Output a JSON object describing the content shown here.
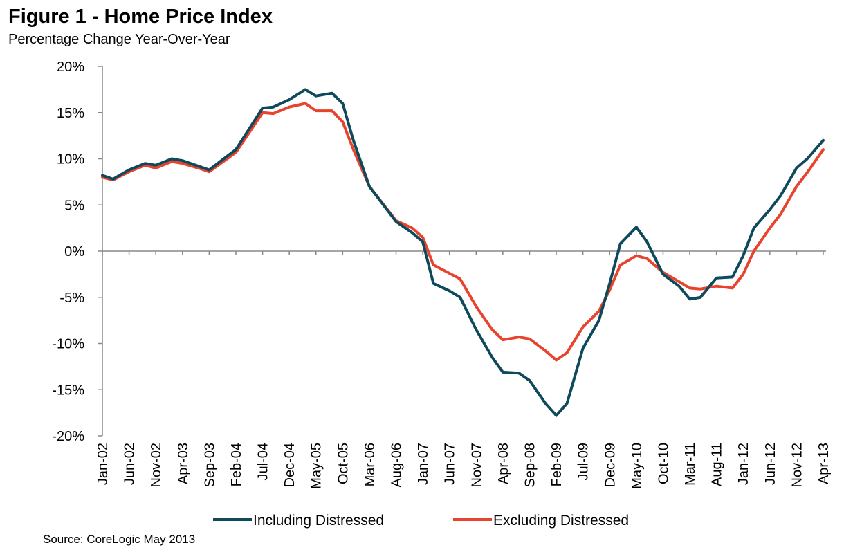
{
  "chart_data": {
    "type": "line",
    "title": "Figure 1 - Home Price Index",
    "subtitle": "Percentage Change Year-Over-Year",
    "xlabel": "",
    "ylabel": "",
    "ylim": [
      -20,
      20
    ],
    "yticks": [
      20,
      15,
      10,
      5,
      0,
      -5,
      -10,
      -15,
      -20
    ],
    "ytick_labels": [
      "20%",
      "15%",
      "10%",
      "5%",
      "0%",
      "-5%",
      "-10%",
      "-15%",
      "-20%"
    ],
    "x_month_range": [
      0,
      135
    ],
    "x_tick_months": [
      0,
      5,
      10,
      15,
      20,
      25,
      30,
      35,
      40,
      45,
      50,
      55,
      60,
      65,
      70,
      75,
      80,
      85,
      90,
      95,
      100,
      105,
      110,
      115,
      120,
      125,
      130,
      135
    ],
    "x_tick_labels": [
      "Jan-02",
      "Jun-02",
      "Nov-02",
      "Apr-03",
      "Sep-03",
      "Feb-04",
      "Jul-04",
      "Dec-04",
      "May-05",
      "Oct-05",
      "Mar-06",
      "Aug-06",
      "Jan-07",
      "Jun-07",
      "Nov-07",
      "Apr-08",
      "Sep-08",
      "Feb-09",
      "Jul-09",
      "Dec-09",
      "May-10",
      "Oct-10",
      "Mar-11",
      "Aug-11",
      "Jan-12",
      "Jun-12",
      "Nov-12",
      "Apr-13"
    ],
    "grid": false,
    "legend": "bottom",
    "series": [
      {
        "name": "Including Distressed",
        "color": "#0f4a5c",
        "months": [
          0,
          2,
          5,
          8,
          10,
          13,
          15,
          18,
          20,
          25,
          30,
          32,
          35,
          38,
          40,
          43,
          45,
          47,
          50,
          55,
          58,
          60,
          62,
          65,
          67,
          70,
          73,
          75,
          78,
          80,
          83,
          85,
          87,
          90,
          93,
          95,
          97,
          100,
          102,
          105,
          108,
          110,
          112,
          115,
          118,
          120,
          122,
          125,
          127,
          130,
          132,
          135
        ],
        "values": [
          8.2,
          7.8,
          8.8,
          9.5,
          9.3,
          10.0,
          9.8,
          9.2,
          8.8,
          11.0,
          15.5,
          15.6,
          16.4,
          17.5,
          16.8,
          17.1,
          16.0,
          12.0,
          7.0,
          3.2,
          2.0,
          1.0,
          -3.5,
          -4.3,
          -5.0,
          -8.5,
          -11.5,
          -13.1,
          -13.2,
          -14.0,
          -16.5,
          -17.8,
          -16.5,
          -10.5,
          -7.5,
          -3.5,
          0.8,
          2.6,
          1.0,
          -2.5,
          -3.8,
          -5.2,
          -5.0,
          -2.9,
          -2.8,
          -0.5,
          2.5,
          4.5,
          6.0,
          9.0,
          10.0,
          12.0
        ]
      },
      {
        "name": "Excluding Distressed",
        "color": "#e8432c",
        "months": [
          0,
          2,
          5,
          8,
          10,
          13,
          15,
          18,
          20,
          25,
          30,
          32,
          35,
          38,
          40,
          43,
          45,
          47,
          50,
          55,
          58,
          60,
          62,
          65,
          67,
          70,
          73,
          75,
          78,
          80,
          83,
          85,
          87,
          90,
          93,
          95,
          97,
          100,
          102,
          105,
          108,
          110,
          112,
          115,
          118,
          120,
          122,
          125,
          127,
          130,
          132,
          135
        ],
        "values": [
          8.0,
          7.7,
          8.6,
          9.3,
          9.0,
          9.7,
          9.5,
          9.0,
          8.6,
          10.7,
          15.0,
          14.9,
          15.6,
          16.0,
          15.2,
          15.2,
          14.0,
          11.0,
          7.0,
          3.3,
          2.5,
          1.5,
          -1.5,
          -2.4,
          -3.0,
          -6.0,
          -8.5,
          -9.6,
          -9.3,
          -9.5,
          -10.8,
          -11.8,
          -11.0,
          -8.2,
          -6.5,
          -4.2,
          -1.5,
          -0.5,
          -0.8,
          -2.3,
          -3.3,
          -4.0,
          -4.1,
          -3.8,
          -4.0,
          -2.5,
          0.0,
          2.5,
          4.0,
          7.0,
          8.5,
          11.0
        ]
      }
    ],
    "source": "Source: CoreLogic May 2013"
  }
}
